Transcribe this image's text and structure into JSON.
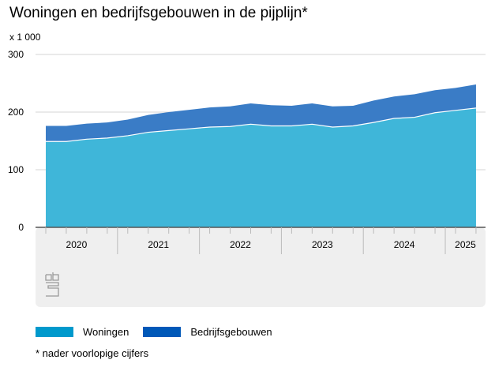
{
  "chart_data": {
    "type": "area",
    "stacked": true,
    "title": "Woningen en bedrijfsgebouwen in de pijplijn*",
    "unit_label": "x 1 000",
    "ylim": [
      0,
      300
    ],
    "yticks": [
      "0",
      "100",
      "200",
      "300"
    ],
    "year_labels": [
      "2020",
      "2021",
      "2022",
      "2023",
      "2024",
      "2025"
    ],
    "x": [
      "2020 Q1",
      "2020 Q2",
      "2020 Q3",
      "2020 Q4",
      "2021 Q1",
      "2021 Q2",
      "2021 Q3",
      "2021 Q4",
      "2022 Q1",
      "2022 Q2",
      "2022 Q3",
      "2022 Q4",
      "2023 Q1",
      "2023 Q2",
      "2023 Q3",
      "2023 Q4",
      "2024 Q1",
      "2024 Q2",
      "2024 Q3",
      "2024 Q4",
      "2025 Q1",
      "2025 Q2"
    ],
    "series": [
      {
        "name": "Woningen",
        "color": "#3fb6d9",
        "legend_color": "#0099cc",
        "values": [
          149,
          149,
          153,
          155,
          159,
          165,
          168,
          171,
          174,
          175,
          179,
          176,
          176,
          179,
          174,
          176,
          182,
          189,
          191,
          199,
          203,
          207
        ]
      },
      {
        "name": "Bedrijfsgebouwen",
        "color": "#3a7cc6",
        "legend_color": "#0058b8",
        "values": [
          27,
          27,
          27,
          27,
          28,
          30,
          32,
          33,
          34,
          35,
          36,
          36,
          35,
          36,
          36,
          35,
          38,
          38,
          40,
          39,
          39,
          41
        ]
      }
    ],
    "footnote": "* nader voorlopige cijfers",
    "logo": "cbs"
  }
}
